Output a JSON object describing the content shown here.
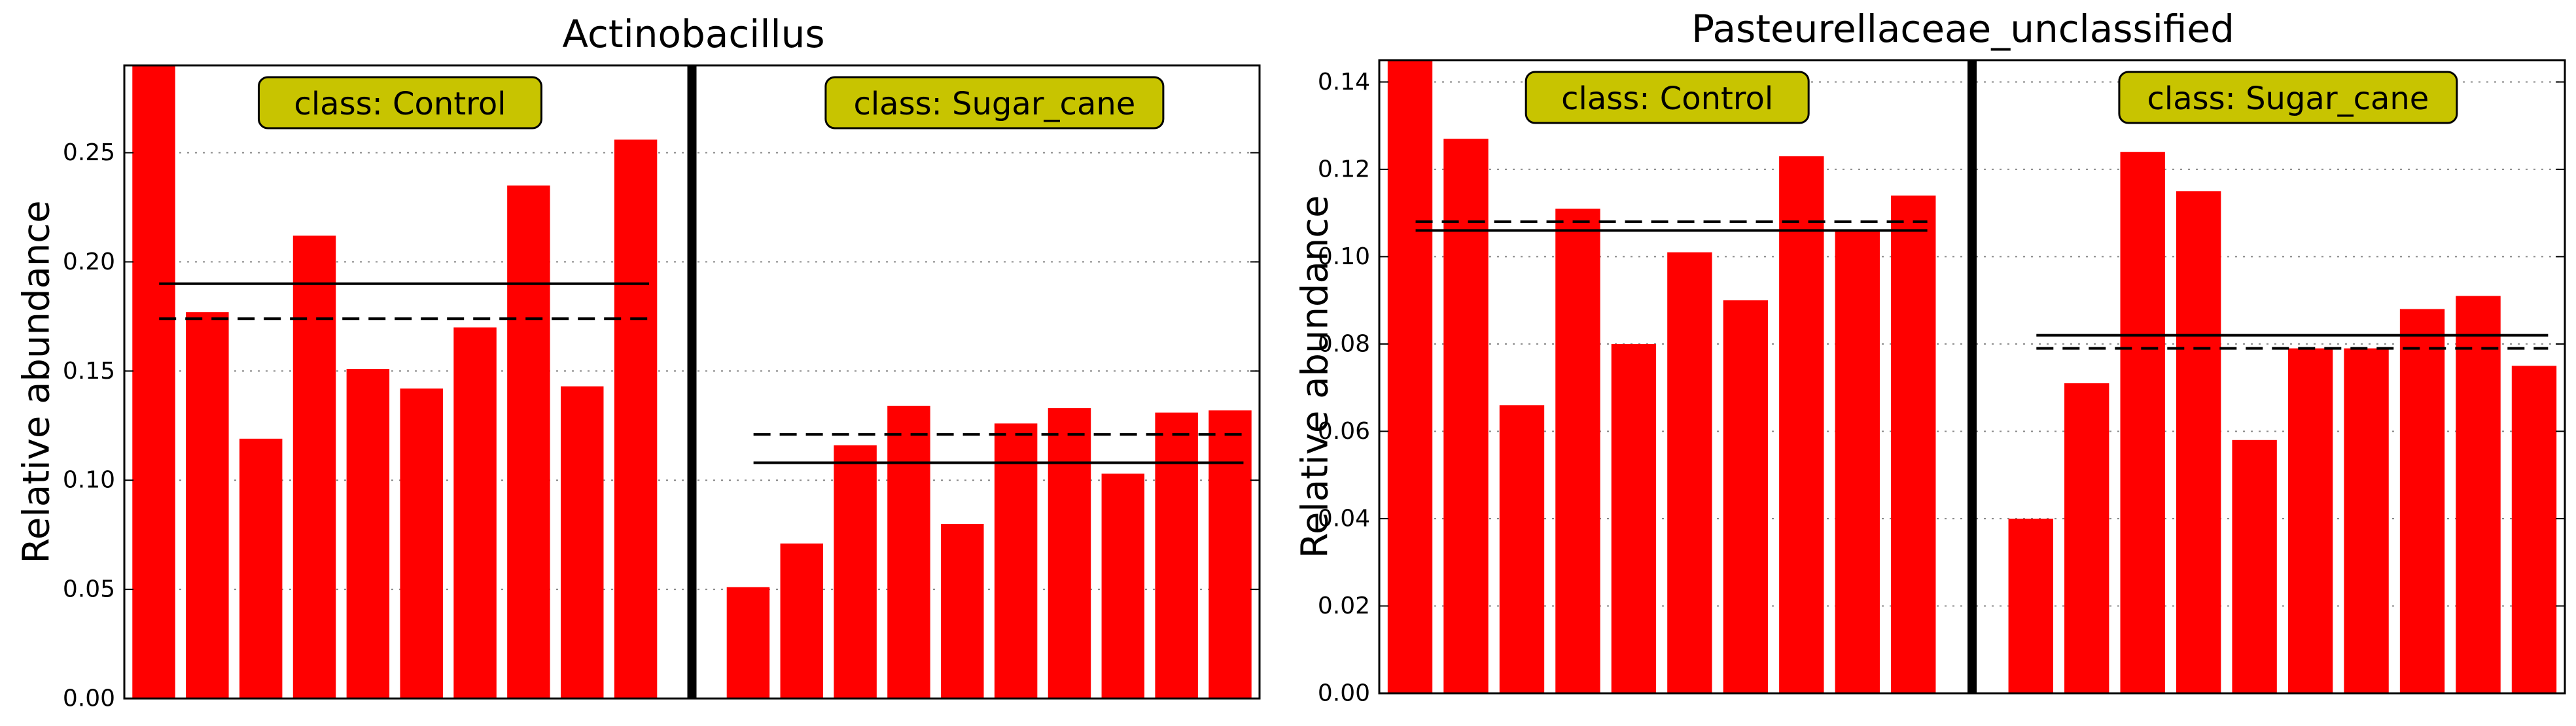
{
  "chart_data": [
    {
      "type": "bar",
      "title": "Actinobacillus",
      "xlabel": "",
      "ylabel": "Relative abundance",
      "ylim": [
        0,
        0.29
      ],
      "yticks": [
        "0.00",
        "0.05",
        "0.10",
        "0.15",
        "0.20",
        "0.25"
      ],
      "yticks_values": [
        0.0,
        0.05,
        0.1,
        0.15,
        0.2,
        0.25
      ],
      "grid": "horizontal-dotted",
      "bar_color": "#ff0000",
      "label_box_color": "#c8c400",
      "classes": [
        {
          "label": "class: Control",
          "values": [
            0.29,
            0.177,
            0.119,
            0.212,
            0.151,
            0.142,
            0.17,
            0.235,
            0.143,
            0.256
          ],
          "mean": 0.19,
          "median": 0.174
        },
        {
          "label": "class: Sugar_cane",
          "values": [
            0.051,
            0.071,
            0.116,
            0.134,
            0.08,
            0.126,
            0.133,
            0.103,
            0.131,
            0.132
          ],
          "mean": 0.108,
          "median": 0.121
        }
      ]
    },
    {
      "type": "bar",
      "title": "Pasteurellaceae_unclassified",
      "xlabel": "",
      "ylabel": "Relative abundance",
      "ylim": [
        0,
        0.145
      ],
      "yticks": [
        "0.00",
        "0.02",
        "0.04",
        "0.06",
        "0.08",
        "0.10",
        "0.12",
        "0.14"
      ],
      "yticks_values": [
        0.0,
        0.02,
        0.04,
        0.06,
        0.08,
        0.1,
        0.12,
        0.14
      ],
      "grid": "horizontal-dotted",
      "bar_color": "#ff0000",
      "label_box_color": "#c8c400",
      "classes": [
        {
          "label": "class: Control",
          "values": [
            0.145,
            0.127,
            0.066,
            0.111,
            0.08,
            0.101,
            0.09,
            0.123,
            0.106,
            0.114
          ],
          "mean": 0.106,
          "median": 0.108
        },
        {
          "label": "class: Sugar_cane",
          "values": [
            0.04,
            0.071,
            0.124,
            0.115,
            0.058,
            0.079,
            0.079,
            0.088,
            0.091,
            0.075
          ],
          "mean": 0.082,
          "median": 0.079
        }
      ]
    }
  ]
}
